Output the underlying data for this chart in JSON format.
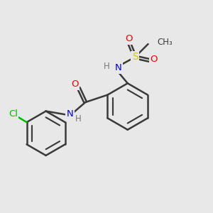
{
  "background_color": "#e8e8e8",
  "bond_color": "#3a3a3a",
  "colors": {
    "C": "#3a3a3a",
    "N": "#0000ee",
    "O": "#ee0000",
    "S": "#cccc00",
    "Cl": "#00bb00",
    "H": "#777777"
  },
  "figsize": [
    3.0,
    3.0
  ],
  "dpi": 100
}
